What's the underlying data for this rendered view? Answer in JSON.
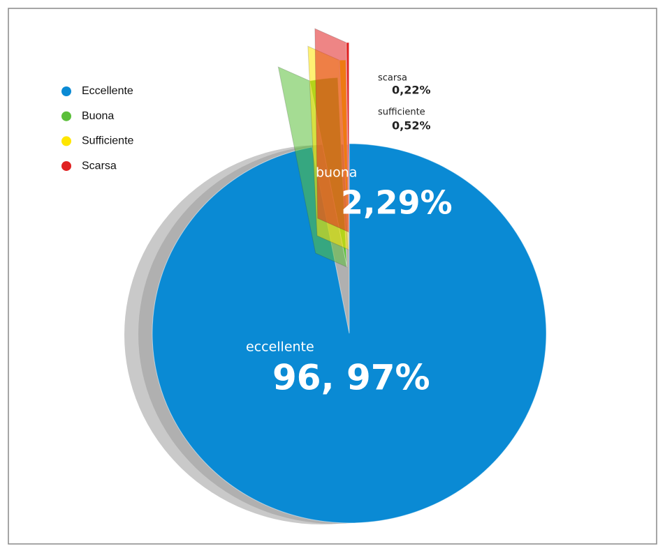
{
  "chart_data": {
    "type": "pie",
    "categories": [
      "Eccellente",
      "Buona",
      "Sufficiente",
      "Scarsa"
    ],
    "slice_labels": [
      "eccellente",
      "buona",
      "sufficiente",
      "scarsa"
    ],
    "values": [
      96.97,
      2.29,
      0.52,
      0.22
    ],
    "value_labels": [
      "96, 97%",
      "2,29%",
      "0,52%",
      "0,22%"
    ],
    "colors": [
      "#0a8ad4",
      "#5bbf3a",
      "#ffe600",
      "#e02020"
    ],
    "legend": "upper left"
  }
}
